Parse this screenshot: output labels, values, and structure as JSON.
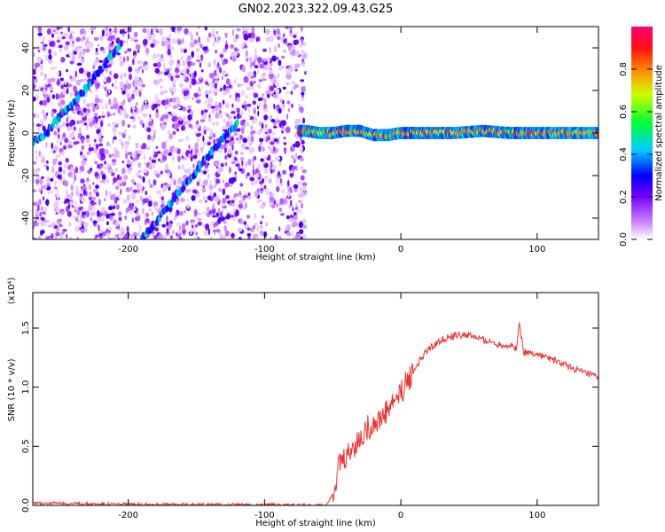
{
  "title": "GN02.2023.322.09.43.G25",
  "chart_data": [
    {
      "type": "heatmap",
      "xlabel": "Height of straight line (km)",
      "ylabel": "Frequency (Hz)",
      "xlim": [
        -270,
        145
      ],
      "ylim": [
        -50,
        50
      ],
      "xticks": [
        -200,
        -100,
        0,
        100
      ],
      "yticks": [
        -40,
        -20,
        0,
        20,
        40
      ],
      "colorbar": {
        "label": "Normalized spectral amplitude",
        "range": [
          0,
          1
        ],
        "ticks": [
          0.0,
          0.2,
          0.4,
          0.6,
          0.8
        ]
      },
      "tracks": [
        {
          "x": [
            -270,
            -260,
            -250,
            -240,
            -230,
            -220,
            -210,
            -205
          ],
          "y": [
            -4,
            0,
            8,
            14,
            22,
            30,
            38,
            42
          ]
        },
        {
          "x": [
            -190,
            -180,
            -170,
            -160,
            -150,
            -140,
            -130,
            -120
          ],
          "y": [
            -50,
            -42,
            -34,
            -26,
            -18,
            -10,
            -2,
            4
          ]
        },
        {
          "x": [
            -75,
            -70,
            -60,
            -50,
            -40,
            -30,
            -20,
            -10,
            0,
            20,
            40,
            60,
            80,
            100,
            120,
            145
          ],
          "y": [
            1,
            1,
            0,
            0,
            1,
            1,
            -1,
            -1,
            0,
            0,
            0,
            1,
            0,
            0,
            0,
            0
          ]
        }
      ]
    },
    {
      "type": "line",
      "xlabel": "Height of straight line (km)",
      "ylabel": "SNR (10 * v/v)",
      "y_multiplier": "(x10⁴)",
      "xlim": [
        -270,
        145
      ],
      "ylim": [
        0,
        1.8
      ],
      "xticks": [
        -200,
        -100,
        0,
        100
      ],
      "yticks": [
        0.0,
        0.5,
        1.0,
        1.5
      ],
      "series": [
        {
          "color": "#ee3333",
          "x": [
            -270,
            -200,
            -100,
            -55,
            -50,
            -45,
            -40,
            -35,
            -30,
            -25,
            -20,
            -15,
            -10,
            -5,
            0,
            5,
            10,
            15,
            20,
            30,
            40,
            50,
            60,
            70,
            80,
            85,
            87,
            90,
            100,
            110,
            120,
            130,
            145
          ],
          "y": [
            0.02,
            0.01,
            0.005,
            0.0,
            0.1,
            0.35,
            0.4,
            0.5,
            0.55,
            0.65,
            0.7,
            0.72,
            0.8,
            0.88,
            0.95,
            1.05,
            1.15,
            1.25,
            1.32,
            1.4,
            1.44,
            1.44,
            1.4,
            1.37,
            1.35,
            1.33,
            1.55,
            1.3,
            1.28,
            1.24,
            1.19,
            1.14,
            1.08
          ]
        }
      ]
    }
  ]
}
